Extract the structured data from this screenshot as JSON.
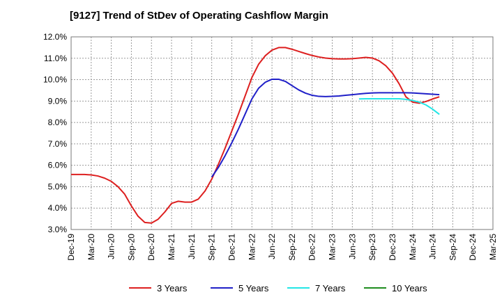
{
  "chart_data": {
    "type": "line",
    "title": "[9127]  Trend of StDev of Operating Cashflow Margin",
    "xlabel": "",
    "ylabel": "",
    "ylim": [
      3.0,
      12.0
    ],
    "yticks": [
      "3.0%",
      "4.0%",
      "5.0%",
      "6.0%",
      "7.0%",
      "8.0%",
      "9.0%",
      "10.0%",
      "11.0%",
      "12.0%"
    ],
    "xticks": [
      "Dec-19",
      "Mar-20",
      "Jun-20",
      "Sep-20",
      "Dec-20",
      "Mar-21",
      "Jun-21",
      "Sep-21",
      "Dec-21",
      "Mar-22",
      "Jun-22",
      "Sep-22",
      "Dec-22",
      "Mar-23",
      "Jun-23",
      "Sep-23",
      "Dec-23",
      "Mar-24",
      "Jun-24",
      "Sep-24",
      "Dec-24",
      "Mar-25"
    ],
    "grid": true,
    "legend_position": "bottom",
    "series": [
      {
        "name": "3 Years",
        "color": "#dd1f1f",
        "points": [
          [
            0,
            5.57
          ],
          [
            1,
            5.57
          ],
          [
            2,
            5.57
          ],
          [
            3,
            5.55
          ],
          [
            4,
            5.5
          ],
          [
            5,
            5.4
          ],
          [
            6,
            5.25
          ],
          [
            7,
            5.0
          ],
          [
            8,
            4.65
          ],
          [
            9,
            4.1
          ],
          [
            10,
            3.62
          ],
          [
            11,
            3.33
          ],
          [
            12,
            3.3
          ],
          [
            13,
            3.48
          ],
          [
            14,
            3.82
          ],
          [
            15,
            4.22
          ],
          [
            16,
            4.32
          ],
          [
            17,
            4.28
          ],
          [
            18,
            4.28
          ],
          [
            19,
            4.42
          ],
          [
            20,
            4.8
          ],
          [
            21,
            5.35
          ],
          [
            22,
            6.05
          ],
          [
            23,
            6.8
          ],
          [
            24,
            7.6
          ],
          [
            25,
            8.4
          ],
          [
            26,
            9.25
          ],
          [
            27,
            10.1
          ],
          [
            28,
            10.72
          ],
          [
            29,
            11.12
          ],
          [
            30,
            11.38
          ],
          [
            31,
            11.5
          ],
          [
            32,
            11.5
          ],
          [
            33,
            11.42
          ],
          [
            34,
            11.32
          ],
          [
            35,
            11.22
          ],
          [
            36,
            11.13
          ],
          [
            37,
            11.06
          ],
          [
            38,
            11.01
          ],
          [
            39,
            10.98
          ],
          [
            40,
            10.97
          ],
          [
            41,
            10.97
          ],
          [
            42,
            10.98
          ],
          [
            43,
            11.01
          ],
          [
            44,
            11.04
          ],
          [
            45,
            11.01
          ],
          [
            46,
            10.88
          ],
          [
            47,
            10.65
          ],
          [
            48,
            10.3
          ],
          [
            49,
            9.8
          ],
          [
            50,
            9.2
          ],
          [
            51,
            8.95
          ],
          [
            52,
            8.9
          ],
          [
            53,
            8.98
          ],
          [
            54,
            9.1
          ],
          [
            55,
            9.2
          ]
        ]
      },
      {
        "name": "5 Years",
        "color": "#1f1fc8",
        "points": [
          [
            21,
            5.45
          ],
          [
            22,
            5.9
          ],
          [
            23,
            6.45
          ],
          [
            24,
            7.05
          ],
          [
            25,
            7.7
          ],
          [
            26,
            8.4
          ],
          [
            27,
            9.1
          ],
          [
            28,
            9.6
          ],
          [
            29,
            9.88
          ],
          [
            30,
            10.02
          ],
          [
            31,
            10.02
          ],
          [
            32,
            9.92
          ],
          [
            33,
            9.72
          ],
          [
            34,
            9.52
          ],
          [
            35,
            9.37
          ],
          [
            36,
            9.27
          ],
          [
            37,
            9.22
          ],
          [
            38,
            9.21
          ],
          [
            39,
            9.22
          ],
          [
            40,
            9.24
          ],
          [
            41,
            9.27
          ],
          [
            42,
            9.3
          ],
          [
            43,
            9.33
          ],
          [
            44,
            9.36
          ],
          [
            45,
            9.38
          ],
          [
            46,
            9.39
          ],
          [
            47,
            9.39
          ],
          [
            48,
            9.39
          ],
          [
            49,
            9.39
          ],
          [
            50,
            9.39
          ],
          [
            51,
            9.38
          ],
          [
            52,
            9.36
          ],
          [
            53,
            9.34
          ],
          [
            54,
            9.32
          ],
          [
            55,
            9.3
          ]
        ]
      },
      {
        "name": "7 Years",
        "color": "#22e6e6",
        "points": [
          [
            43,
            9.1
          ],
          [
            44,
            9.11
          ],
          [
            45,
            9.11
          ],
          [
            46,
            9.11
          ],
          [
            47,
            9.11
          ],
          [
            48,
            9.11
          ],
          [
            49,
            9.11
          ],
          [
            50,
            9.08
          ],
          [
            51,
            9.03
          ],
          [
            52,
            8.95
          ],
          [
            53,
            8.82
          ],
          [
            54,
            8.62
          ],
          [
            55,
            8.38
          ]
        ]
      },
      {
        "name": "10 Years",
        "color": "#1e8c1e",
        "points": []
      }
    ]
  }
}
